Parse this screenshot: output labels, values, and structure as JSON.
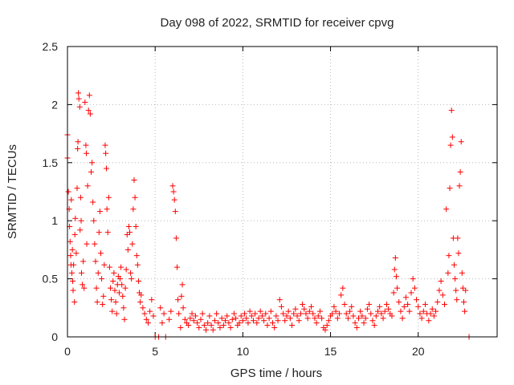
{
  "chart_data": {
    "type": "scatter",
    "title": "Day 098 of 2022, SRMTID for receiver cpvg",
    "xlabel": "GPS time / hours",
    "ylabel": "SRMTID / TECUs",
    "xlim": [
      0,
      24.5
    ],
    "ylim": [
      0,
      2.5
    ],
    "xticks": [
      0,
      5,
      10,
      15,
      20
    ],
    "xtick_labels": [
      "0",
      "5",
      "10",
      "15",
      "20"
    ],
    "yticks": [
      0,
      0.5,
      1,
      1.5,
      2,
      2.5
    ],
    "ytick_labels": [
      "0",
      "0.5",
      "1",
      "1.5",
      "2",
      "2.5"
    ],
    "grid": true,
    "marker": "plus",
    "color": "#ff0000",
    "series": [
      {
        "name": "SRMTID",
        "points": [
          [
            0.0,
            1.74
          ],
          [
            0.0,
            1.54
          ],
          [
            0.05,
            1.25
          ],
          [
            0.1,
            1.1
          ],
          [
            0.12,
            0.95
          ],
          [
            0.15,
            0.82
          ],
          [
            0.18,
            0.7
          ],
          [
            0.2,
            0.62
          ],
          [
            0.22,
            1.18
          ],
          [
            0.25,
            0.55
          ],
          [
            0.28,
            0.75
          ],
          [
            0.3,
            0.48
          ],
          [
            0.32,
            0.4
          ],
          [
            0.35,
            0.62
          ],
          [
            0.4,
            0.3
          ],
          [
            0.42,
            0.88
          ],
          [
            0.45,
            1.02
          ],
          [
            0.5,
            0.72
          ],
          [
            0.55,
            1.28
          ],
          [
            0.58,
            1.62
          ],
          [
            0.6,
            1.68
          ],
          [
            0.62,
            2.1
          ],
          [
            0.65,
            2.05
          ],
          [
            0.7,
            1.98
          ],
          [
            0.72,
            0.92
          ],
          [
            0.75,
            1.2
          ],
          [
            0.78,
            1.0
          ],
          [
            0.8,
            0.55
          ],
          [
            0.85,
            0.45
          ],
          [
            0.9,
            0.65
          ],
          [
            0.95,
            0.42
          ],
          [
            1.0,
            2.02
          ],
          [
            1.05,
            1.65
          ],
          [
            1.08,
            1.58
          ],
          [
            1.1,
            0.8
          ],
          [
            1.15,
            1.3
          ],
          [
            1.2,
            1.95
          ],
          [
            1.25,
            2.08
          ],
          [
            1.3,
            1.92
          ],
          [
            1.35,
            1.42
          ],
          [
            1.4,
            1.5
          ],
          [
            1.45,
            1.16
          ],
          [
            1.5,
            1.0
          ],
          [
            1.55,
            0.8
          ],
          [
            1.6,
            0.65
          ],
          [
            1.65,
            0.42
          ],
          [
            1.7,
            0.3
          ],
          [
            1.75,
            0.55
          ],
          [
            1.8,
            0.9
          ],
          [
            1.85,
            1.08
          ],
          [
            1.9,
            0.72
          ],
          [
            1.95,
            0.5
          ],
          [
            2.0,
            0.28
          ],
          [
            2.05,
            0.35
          ],
          [
            2.1,
            0.62
          ],
          [
            2.15,
            1.65
          ],
          [
            2.18,
            1.58
          ],
          [
            2.22,
            1.45
          ],
          [
            2.25,
            1.1
          ],
          [
            2.3,
            0.9
          ],
          [
            2.35,
            1.2
          ],
          [
            2.4,
            0.6
          ],
          [
            2.45,
            0.42
          ],
          [
            2.5,
            0.32
          ],
          [
            2.55,
            0.22
          ],
          [
            2.6,
            0.48
          ],
          [
            2.65,
            0.55
          ],
          [
            2.7,
            0.4
          ],
          [
            2.75,
            0.3
          ],
          [
            2.8,
            0.2
          ],
          [
            2.85,
            0.45
          ],
          [
            2.9,
            0.52
          ],
          [
            2.95,
            0.38
          ],
          [
            3.0,
            0.5
          ],
          [
            3.05,
            0.6
          ],
          [
            3.1,
            0.45
          ],
          [
            3.15,
            0.35
          ],
          [
            3.2,
            0.25
          ],
          [
            3.25,
            0.15
          ],
          [
            3.3,
            0.42
          ],
          [
            3.35,
            0.58
          ],
          [
            3.4,
            0.88
          ],
          [
            3.45,
            0.75
          ],
          [
            3.5,
            0.95
          ],
          [
            3.55,
            0.9
          ],
          [
            3.6,
            0.55
          ],
          [
            3.65,
            0.5
          ],
          [
            3.7,
            0.8
          ],
          [
            3.75,
            1.1
          ],
          [
            3.8,
            1.35
          ],
          [
            3.85,
            1.2
          ],
          [
            3.9,
            0.95
          ],
          [
            3.95,
            0.7
          ],
          [
            4.0,
            0.62
          ],
          [
            4.05,
            0.48
          ],
          [
            4.1,
            0.38
          ],
          [
            4.15,
            0.3
          ],
          [
            4.2,
            0.36
          ],
          [
            4.3,
            0.25
          ],
          [
            4.4,
            0.2
          ],
          [
            4.5,
            0.15
          ],
          [
            4.6,
            0.12
          ],
          [
            4.7,
            0.22
          ],
          [
            4.8,
            0.32
          ],
          [
            4.9,
            0.18
          ],
          [
            5.0,
            0.0
          ],
          [
            5.2,
            0.0
          ],
          [
            5.3,
            0.25
          ],
          [
            5.4,
            0.12
          ],
          [
            5.5,
            0.2
          ],
          [
            5.6,
            0.0
          ],
          [
            5.8,
            0.15
          ],
          [
            5.9,
            0.22
          ],
          [
            6.0,
            1.3
          ],
          [
            6.05,
            1.25
          ],
          [
            6.1,
            1.18
          ],
          [
            6.15,
            1.08
          ],
          [
            6.2,
            0.85
          ],
          [
            6.25,
            0.6
          ],
          [
            6.3,
            0.32
          ],
          [
            6.35,
            0.2
          ],
          [
            6.45,
            0.08
          ],
          [
            6.5,
            0.35
          ],
          [
            6.55,
            0.45
          ],
          [
            6.6,
            0.25
          ],
          [
            6.7,
            0.15
          ],
          [
            6.8,
            0.12
          ],
          [
            6.9,
            0.1
          ],
          [
            7.0,
            0.16
          ],
          [
            7.1,
            0.2
          ],
          [
            7.2,
            0.14
          ],
          [
            7.3,
            0.18
          ],
          [
            7.4,
            0.12
          ],
          [
            7.5,
            0.08
          ],
          [
            7.6,
            0.15
          ],
          [
            7.7,
            0.2
          ],
          [
            7.8,
            0.1
          ],
          [
            7.9,
            0.06
          ],
          [
            8.0,
            0.12
          ],
          [
            8.1,
            0.18
          ],
          [
            8.2,
            0.1
          ],
          [
            8.3,
            0.06
          ],
          [
            8.4,
            0.14
          ],
          [
            8.5,
            0.2
          ],
          [
            8.6,
            0.12
          ],
          [
            8.7,
            0.08
          ],
          [
            8.8,
            0.16
          ],
          [
            8.9,
            0.1
          ],
          [
            9.0,
            0.14
          ],
          [
            9.1,
            0.18
          ],
          [
            9.2,
            0.12
          ],
          [
            9.3,
            0.08
          ],
          [
            9.4,
            0.15
          ],
          [
            9.5,
            0.2
          ],
          [
            9.6,
            0.16
          ],
          [
            9.7,
            0.1
          ],
          [
            9.8,
            0.12
          ],
          [
            9.9,
            0.18
          ],
          [
            10.0,
            0.14
          ],
          [
            10.1,
            0.2
          ],
          [
            10.2,
            0.16
          ],
          [
            10.3,
            0.12
          ],
          [
            10.4,
            0.22
          ],
          [
            10.5,
            0.18
          ],
          [
            10.6,
            0.14
          ],
          [
            10.7,
            0.2
          ],
          [
            10.8,
            0.12
          ],
          [
            10.9,
            0.16
          ],
          [
            11.0,
            0.22
          ],
          [
            11.1,
            0.18
          ],
          [
            11.2,
            0.14
          ],
          [
            11.3,
            0.2
          ],
          [
            11.4,
            0.1
          ],
          [
            11.5,
            0.16
          ],
          [
            11.6,
            0.22
          ],
          [
            11.7,
            0.12
          ],
          [
            11.8,
            0.08
          ],
          [
            11.9,
            0.18
          ],
          [
            12.0,
            0.14
          ],
          [
            12.1,
            0.32
          ],
          [
            12.2,
            0.26
          ],
          [
            12.3,
            0.2
          ],
          [
            12.4,
            0.14
          ],
          [
            12.5,
            0.18
          ],
          [
            12.6,
            0.22
          ],
          [
            12.7,
            0.16
          ],
          [
            12.8,
            0.1
          ],
          [
            12.9,
            0.2
          ],
          [
            13.0,
            0.24
          ],
          [
            13.1,
            0.18
          ],
          [
            13.2,
            0.14
          ],
          [
            13.3,
            0.2
          ],
          [
            13.4,
            0.28
          ],
          [
            13.5,
            0.24
          ],
          [
            13.6,
            0.2
          ],
          [
            13.7,
            0.16
          ],
          [
            13.8,
            0.22
          ],
          [
            13.9,
            0.26
          ],
          [
            14.0,
            0.2
          ],
          [
            14.1,
            0.16
          ],
          [
            14.2,
            0.12
          ],
          [
            14.3,
            0.18
          ],
          [
            14.4,
            0.22
          ],
          [
            14.5,
            0.16
          ],
          [
            14.6,
            0.08
          ],
          [
            14.7,
            0.06
          ],
          [
            14.8,
            0.1
          ],
          [
            14.9,
            0.14
          ],
          [
            15.0,
            0.18
          ],
          [
            15.1,
            0.2
          ],
          [
            15.2,
            0.26
          ],
          [
            15.3,
            0.22
          ],
          [
            15.4,
            0.16
          ],
          [
            15.5,
            0.2
          ],
          [
            15.6,
            0.36
          ],
          [
            15.7,
            0.42
          ],
          [
            15.8,
            0.28
          ],
          [
            15.9,
            0.2
          ],
          [
            16.0,
            0.16
          ],
          [
            16.1,
            0.22
          ],
          [
            16.2,
            0.26
          ],
          [
            16.3,
            0.18
          ],
          [
            16.4,
            0.12
          ],
          [
            16.5,
            0.08
          ],
          [
            16.6,
            0.16
          ],
          [
            16.7,
            0.22
          ],
          [
            16.8,
            0.18
          ],
          [
            16.9,
            0.12
          ],
          [
            17.0,
            0.16
          ],
          [
            17.1,
            0.24
          ],
          [
            17.2,
            0.28
          ],
          [
            17.3,
            0.2
          ],
          [
            17.4,
            0.14
          ],
          [
            17.5,
            0.1
          ],
          [
            17.6,
            0.18
          ],
          [
            17.7,
            0.22
          ],
          [
            17.8,
            0.26
          ],
          [
            17.9,
            0.2
          ],
          [
            18.0,
            0.16
          ],
          [
            18.1,
            0.22
          ],
          [
            18.2,
            0.28
          ],
          [
            18.3,
            0.24
          ],
          [
            18.4,
            0.2
          ],
          [
            18.5,
            0.18
          ],
          [
            18.6,
            0.38
          ],
          [
            18.65,
            0.58
          ],
          [
            18.7,
            0.68
          ],
          [
            18.75,
            0.52
          ],
          [
            18.8,
            0.42
          ],
          [
            18.9,
            0.3
          ],
          [
            19.0,
            0.22
          ],
          [
            19.1,
            0.16
          ],
          [
            19.2,
            0.26
          ],
          [
            19.3,
            0.34
          ],
          [
            19.4,
            0.28
          ],
          [
            19.5,
            0.22
          ],
          [
            19.6,
            0.38
          ],
          [
            19.7,
            0.5
          ],
          [
            19.8,
            0.42
          ],
          [
            19.9,
            0.32
          ],
          [
            20.0,
            0.26
          ],
          [
            20.1,
            0.2
          ],
          [
            20.2,
            0.16
          ],
          [
            20.3,
            0.22
          ],
          [
            20.4,
            0.28
          ],
          [
            20.5,
            0.2
          ],
          [
            20.6,
            0.14
          ],
          [
            20.7,
            0.2
          ],
          [
            20.8,
            0.24
          ],
          [
            20.9,
            0.18
          ],
          [
            21.0,
            0.22
          ],
          [
            21.1,
            0.3
          ],
          [
            21.2,
            0.4
          ],
          [
            21.3,
            0.48
          ],
          [
            21.4,
            0.36
          ],
          [
            21.5,
            0.28
          ],
          [
            21.6,
            1.1
          ],
          [
            21.7,
            0.55
          ],
          [
            21.75,
            0.7
          ],
          [
            21.8,
            1.28
          ],
          [
            21.85,
            1.65
          ],
          [
            21.9,
            1.95
          ],
          [
            21.95,
            1.72
          ],
          [
            22.0,
            0.85
          ],
          [
            22.05,
            0.62
          ],
          [
            22.1,
            0.5
          ],
          [
            22.15,
            0.4
          ],
          [
            22.2,
            0.32
          ],
          [
            22.25,
            0.85
          ],
          [
            22.3,
            0.72
          ],
          [
            22.35,
            1.3
          ],
          [
            22.4,
            1.42
          ],
          [
            22.45,
            1.68
          ],
          [
            22.5,
            0.55
          ],
          [
            22.55,
            0.42
          ],
          [
            22.6,
            0.3
          ],
          [
            22.65,
            0.22
          ],
          [
            22.7,
            0.4
          ],
          [
            22.9,
            0.0
          ]
        ]
      }
    ]
  }
}
